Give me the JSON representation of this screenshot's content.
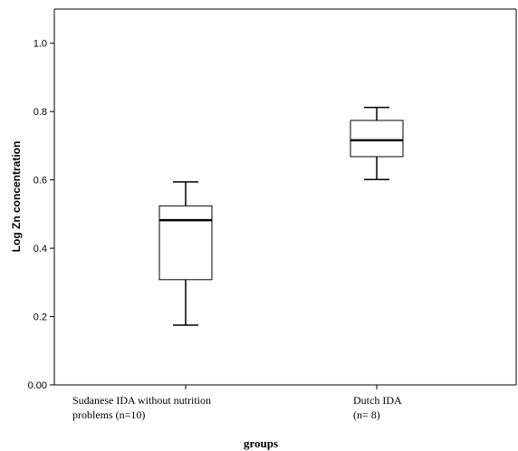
{
  "chart_data": {
    "type": "boxplot",
    "xlabel": "groups",
    "ylabel": "Log Zn concentration",
    "ylim": [
      0.0,
      1.1
    ],
    "yticks": [
      {
        "value": 0.0,
        "label": "0.00"
      },
      {
        "value": 0.2,
        "label": "0.2"
      },
      {
        "value": 0.4,
        "label": "0.4"
      },
      {
        "value": 0.6,
        "label": "0.6"
      },
      {
        "value": 0.8,
        "label": "0.8"
      },
      {
        "value": 1.0,
        "label": "1.0"
      }
    ],
    "categories": [
      {
        "line1": "Sudanese IDA without nutrition",
        "line2": "problems (n=10)"
      },
      {
        "line1": "Dutch IDA",
        "line2": "(n= 8)"
      }
    ],
    "boxes": [
      {
        "min": 0.175,
        "q1": 0.308,
        "median": 0.482,
        "q3": 0.524,
        "max": 0.594
      },
      {
        "min": 0.601,
        "q1": 0.668,
        "median": 0.716,
        "q3": 0.774,
        "max": 0.812
      }
    ],
    "grid": false,
    "legend": "none"
  }
}
